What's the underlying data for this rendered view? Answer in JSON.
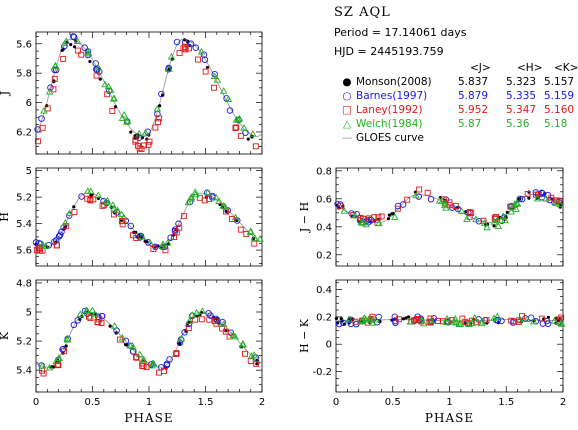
{
  "header": {
    "star": "SZ AQL",
    "period": "Period = 17.14061 days",
    "hjd": "HJD = 2445193.759"
  },
  "legend": {
    "columns": [
      "<J>",
      "<H>",
      "<K>"
    ],
    "rows": [
      {
        "name": "Monson(2008)",
        "J": "5.837",
        "H": "5.323",
        "K": "5.157",
        "color": "#000000",
        "marker": "dot"
      },
      {
        "name": "Barnes(1997)",
        "J": "5.879",
        "H": "5.335",
        "K": "5.159",
        "color": "#1a1adc",
        "marker": "circle"
      },
      {
        "name": "Laney(1992)",
        "J": "5.952",
        "H": "5.347",
        "K": "5.160",
        "color": "#e01a1a",
        "marker": "square"
      },
      {
        "name": "Welch(1984)",
        "J": "5.87",
        "H": "5.36",
        "K": "5.18",
        "color": "#22b022",
        "marker": "triangle"
      },
      {
        "name": "GLOES curve",
        "color": "#9a9a9a",
        "marker": "line"
      }
    ]
  },
  "chart_data": [
    {
      "type": "scatter",
      "id": "J",
      "xlabel": "",
      "ylabel": "J",
      "xlim": [
        0,
        2
      ],
      "ylim": [
        6.35,
        5.52
      ],
      "inverted": true,
      "yticks": [
        "5.6",
        "5.8",
        "6",
        "6.2"
      ],
      "ytick_values": [
        5.6,
        5.8,
        6.0,
        6.2
      ],
      "xticks": [],
      "curve": {
        "mean": 5.9,
        "amp": 0.33,
        "phase_peak": 0.3
      }
    },
    {
      "type": "scatter",
      "id": "H",
      "xlabel": "",
      "ylabel": "H",
      "xlim": [
        0,
        2
      ],
      "ylim": [
        5.72,
        4.98
      ],
      "inverted": true,
      "yticks": [
        "5",
        "5.2",
        "5.4",
        "5.6"
      ],
      "ytick_values": [
        5.0,
        5.2,
        5.4,
        5.6
      ],
      "xticks": [],
      "curve": {
        "mean": 5.37,
        "amp": 0.2,
        "phase_peak": 0.45
      }
    },
    {
      "type": "scatter",
      "id": "K",
      "xlabel": "PHASE",
      "ylabel": "K",
      "xlim": [
        0,
        2
      ],
      "ylim": [
        5.55,
        4.78
      ],
      "inverted": true,
      "yticks": [
        "4.8",
        "5",
        "5.2",
        "5.4"
      ],
      "ytick_values": [
        4.8,
        5.0,
        5.2,
        5.4
      ],
      "xticks": [
        "0",
        "0.5",
        "1",
        "1.5",
        "2"
      ],
      "xtick_values": [
        0,
        0.5,
        1,
        1.5,
        2
      ],
      "curve": {
        "mean": 5.19,
        "amp": 0.19,
        "phase_peak": 0.45
      }
    },
    {
      "type": "scatter",
      "id": "J-H",
      "xlabel": "",
      "ylabel": "J − H",
      "xlim": [
        0,
        2
      ],
      "ylim": [
        0.12,
        0.82
      ],
      "inverted": false,
      "yticks": [
        "0.8",
        "0.6",
        "0.4",
        "0.2"
      ],
      "ytick_values": [
        0.8,
        0.6,
        0.4,
        0.2
      ],
      "xticks": [],
      "curve": {
        "mean": 0.53,
        "amp": 0.1,
        "phase_peak": 0.72
      }
    },
    {
      "type": "scatter",
      "id": "H-K",
      "xlabel": "PHASE",
      "ylabel": "H − K",
      "xlim": [
        0,
        2
      ],
      "ylim": [
        -0.35,
        0.47
      ],
      "inverted": false,
      "yticks": [
        "0.4",
        "0.2",
        "0",
        "-0.2"
      ],
      "ytick_values": [
        0.4,
        0.2,
        0.0,
        -0.2
      ],
      "xticks": [
        "0",
        "0.5",
        "1",
        "1.5",
        "2"
      ],
      "xtick_values": [
        0,
        0.5,
        1,
        1.5,
        2
      ],
      "curve": {
        "mean": 0.18,
        "amp": 0.01,
        "phase_peak": 0.5
      }
    }
  ]
}
